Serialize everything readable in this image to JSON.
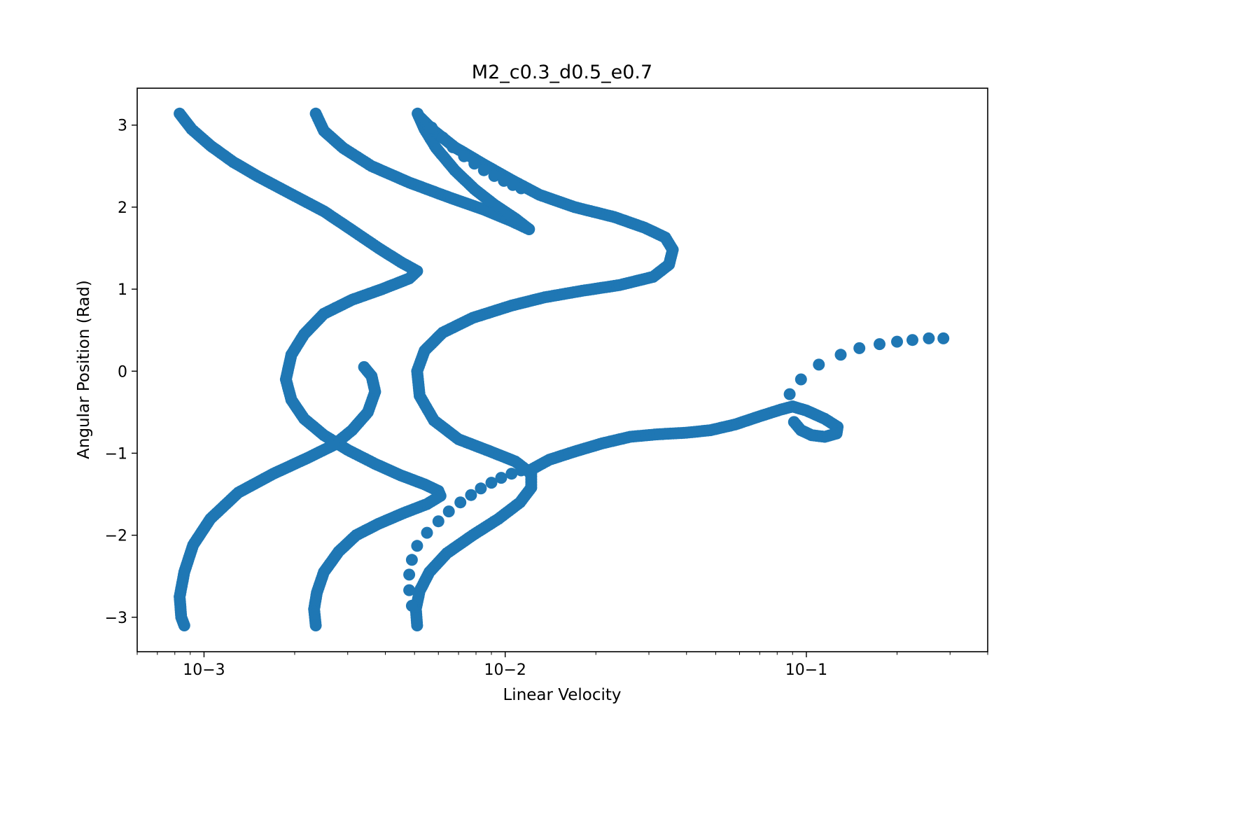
{
  "chart_data": {
    "type": "scatter",
    "title": "M2_c0.3_d0.5_e0.7",
    "xlabel": "Linear Velocity",
    "ylabel": "Angular Position (Rad)",
    "x_scale": "log",
    "xlim": [
      0.0006,
      0.4
    ],
    "ylim": [
      -3.42,
      3.45
    ],
    "grid": false,
    "marker_color": "#1f77b4",
    "x_ticks": [
      {
        "value": 0.001,
        "label": "10−3"
      },
      {
        "value": 0.01,
        "label": "10−2"
      },
      {
        "value": 0.1,
        "label": "10−1"
      }
    ],
    "y_ticks": [
      {
        "value": -3,
        "label": "−3"
      },
      {
        "value": -2,
        "label": "−2"
      },
      {
        "value": -1,
        "label": "−1"
      },
      {
        "value": 0,
        "label": "0"
      },
      {
        "value": 1,
        "label": "1"
      },
      {
        "value": 2,
        "label": "2"
      },
      {
        "value": 3,
        "label": "3"
      }
    ],
    "series": [
      {
        "points": [
          [
            0.00083,
            3.14
          ],
          [
            0.00091,
            2.95
          ],
          [
            0.00105,
            2.75
          ],
          [
            0.00125,
            2.55
          ],
          [
            0.0015,
            2.38
          ],
          [
            0.0019,
            2.18
          ],
          [
            0.0025,
            1.95
          ],
          [
            0.0031,
            1.72
          ],
          [
            0.0038,
            1.5
          ],
          [
            0.0045,
            1.33
          ],
          [
            0.0051,
            1.22
          ],
          [
            0.0048,
            1.13
          ],
          [
            0.0039,
            1.0
          ],
          [
            0.0031,
            0.87
          ],
          [
            0.0025,
            0.7
          ],
          [
            0.00215,
            0.45
          ],
          [
            0.00195,
            0.2
          ],
          [
            0.00187,
            -0.1
          ],
          [
            0.00195,
            -0.35
          ],
          [
            0.00215,
            -0.58
          ],
          [
            0.0025,
            -0.78
          ],
          [
            0.003,
            -0.96
          ],
          [
            0.0037,
            -1.13
          ],
          [
            0.0045,
            -1.27
          ],
          [
            0.0054,
            -1.38
          ],
          [
            0.006,
            -1.46
          ],
          [
            0.0061,
            -1.52
          ],
          [
            0.0055,
            -1.62
          ],
          [
            0.0046,
            -1.73
          ],
          [
            0.0038,
            -1.86
          ],
          [
            0.0032,
            -2.0
          ],
          [
            0.0028,
            -2.2
          ],
          [
            0.0025,
            -2.45
          ],
          [
            0.00237,
            -2.7
          ],
          [
            0.00232,
            -2.9
          ],
          [
            0.00235,
            -3.1
          ]
        ]
      },
      {
        "points": [
          [
            0.00235,
            3.14
          ],
          [
            0.0025,
            2.93
          ],
          [
            0.0029,
            2.72
          ],
          [
            0.0036,
            2.5
          ],
          [
            0.0048,
            2.3
          ],
          [
            0.0065,
            2.12
          ],
          [
            0.0085,
            1.97
          ],
          [
            0.0105,
            1.83
          ],
          [
            0.012,
            1.73
          ],
          [
            0.0108,
            1.86
          ],
          [
            0.0092,
            2.03
          ],
          [
            0.0079,
            2.22
          ],
          [
            0.0068,
            2.45
          ],
          [
            0.0059,
            2.72
          ],
          [
            0.0054,
            2.95
          ],
          [
            0.00512,
            3.14
          ]
        ]
      },
      {
        "points": [
          [
            0.0034,
            0.05
          ],
          [
            0.0036,
            -0.06
          ],
          [
            0.0037,
            -0.25
          ],
          [
            0.0035,
            -0.5
          ],
          [
            0.0031,
            -0.72
          ],
          [
            0.0027,
            -0.9
          ],
          [
            0.0022,
            -1.06
          ],
          [
            0.0017,
            -1.25
          ],
          [
            0.0013,
            -1.48
          ],
          [
            0.00105,
            -1.8
          ],
          [
            0.00092,
            -2.12
          ],
          [
            0.00086,
            -2.45
          ],
          [
            0.00083,
            -2.75
          ],
          [
            0.00084,
            -3.0
          ],
          [
            0.00086,
            -3.1
          ]
        ]
      },
      {
        "points": [
          [
            0.0051,
            -3.1
          ],
          [
            0.00505,
            -2.9
          ],
          [
            0.0052,
            -2.68
          ],
          [
            0.0056,
            -2.45
          ],
          [
            0.0064,
            -2.22
          ],
          [
            0.0078,
            -2.0
          ],
          [
            0.0095,
            -1.8
          ],
          [
            0.0112,
            -1.6
          ],
          [
            0.0122,
            -1.42
          ],
          [
            0.0122,
            -1.25
          ],
          [
            0.0108,
            -1.1
          ],
          [
            0.0088,
            -0.97
          ],
          [
            0.007,
            -0.83
          ],
          [
            0.0058,
            -0.6
          ],
          [
            0.0052,
            -0.3
          ],
          [
            0.0051,
            0.0
          ],
          [
            0.0054,
            0.25
          ],
          [
            0.0062,
            0.47
          ],
          [
            0.0078,
            0.65
          ],
          [
            0.0105,
            0.8
          ],
          [
            0.0135,
            0.9
          ],
          [
            0.018,
            0.98
          ],
          [
            0.024,
            1.05
          ],
          [
            0.031,
            1.15
          ],
          [
            0.035,
            1.3
          ],
          [
            0.036,
            1.48
          ],
          [
            0.034,
            1.63
          ],
          [
            0.029,
            1.75
          ],
          [
            0.023,
            1.88
          ],
          [
            0.017,
            2.0
          ],
          [
            0.013,
            2.15
          ],
          [
            0.0105,
            2.33
          ],
          [
            0.0085,
            2.52
          ],
          [
            0.0068,
            2.73
          ],
          [
            0.0058,
            2.93
          ],
          [
            0.0052,
            3.1
          ]
        ]
      },
      {
        "points": [
          [
            0.0122,
            -1.2
          ],
          [
            0.014,
            -1.08
          ],
          [
            0.017,
            -0.98
          ],
          [
            0.021,
            -0.88
          ],
          [
            0.026,
            -0.8
          ],
          [
            0.032,
            -0.77
          ],
          [
            0.04,
            -0.75
          ],
          [
            0.048,
            -0.72
          ],
          [
            0.058,
            -0.65
          ],
          [
            0.07,
            -0.55
          ],
          [
            0.082,
            -0.47
          ],
          [
            0.09,
            -0.43
          ],
          [
            0.1,
            -0.48
          ],
          [
            0.115,
            -0.58
          ],
          [
            0.127,
            -0.68
          ],
          [
            0.126,
            -0.76
          ],
          [
            0.115,
            -0.8
          ],
          [
            0.104,
            -0.78
          ],
          [
            0.096,
            -0.72
          ],
          [
            0.091,
            -0.62
          ]
        ]
      },
      {
        "points": [
          [
            0.0049,
            -2.86
          ],
          [
            0.0048,
            -2.67
          ],
          [
            0.0048,
            -2.48
          ],
          [
            0.0049,
            -2.3
          ],
          [
            0.0051,
            -2.13
          ],
          [
            0.0055,
            -1.97
          ],
          [
            0.006,
            -1.83
          ],
          [
            0.0065,
            -1.71
          ],
          [
            0.0071,
            -1.6
          ],
          [
            0.0077,
            -1.51
          ],
          [
            0.0083,
            -1.43
          ],
          [
            0.009,
            -1.36
          ],
          [
            0.0097,
            -1.3
          ],
          [
            0.0105,
            -1.25
          ],
          [
            0.0113,
            -1.21
          ]
        ]
      },
      {
        "points": [
          [
            0.088,
            -0.28
          ],
          [
            0.096,
            -0.1
          ],
          [
            0.11,
            0.08
          ],
          [
            0.13,
            0.2
          ],
          [
            0.15,
            0.28
          ],
          [
            0.175,
            0.33
          ],
          [
            0.2,
            0.36
          ],
          [
            0.225,
            0.38
          ],
          [
            0.255,
            0.4
          ],
          [
            0.285,
            0.4
          ]
        ]
      },
      {
        "points": [
          [
            0.0057,
            2.97
          ],
          [
            0.0062,
            2.85
          ],
          [
            0.0067,
            2.73
          ],
          [
            0.0073,
            2.62
          ],
          [
            0.0079,
            2.53
          ],
          [
            0.0085,
            2.45
          ],
          [
            0.0092,
            2.38
          ],
          [
            0.0099,
            2.32
          ],
          [
            0.0106,
            2.27
          ],
          [
            0.0113,
            2.23
          ]
        ]
      }
    ]
  }
}
